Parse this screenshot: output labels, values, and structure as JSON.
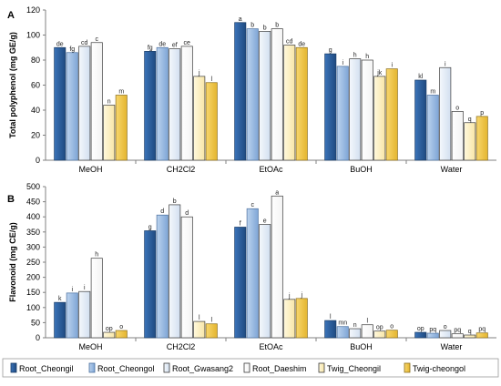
{
  "figure": {
    "legend": [
      {
        "name": "Root_Cheongil",
        "color": "#2e5f9e",
        "gradient": [
          "#3a73b8",
          "#1f4a80"
        ],
        "stroke": "#1a3c66"
      },
      {
        "name": "Root_Cheongol",
        "color": "#9dbde3",
        "gradient": [
          "#bcd3ee",
          "#7fa6d6"
        ],
        "stroke": "#4a6f9e"
      },
      {
        "name": "Root_Gwasang2",
        "color": "#e3ebf6",
        "gradient": [
          "#f4f8fc",
          "#d2dff0"
        ],
        "stroke": "#3c3c3c"
      },
      {
        "name": "Root_Daeshim",
        "color": "#ffffff",
        "gradient": [
          "#ffffff",
          "#f3f3f3"
        ],
        "stroke": "#3c3c3c"
      },
      {
        "name": "Twig_Cheongil",
        "color": "#fdf0c4",
        "gradient": [
          "#fff8dc",
          "#f8e6a8"
        ],
        "stroke": "#3c3c3c"
      },
      {
        "name": "Twig-cheongol",
        "color": "#f2c84b",
        "gradient": [
          "#f8d76e",
          "#e4b52e"
        ],
        "stroke": "#8a6d1a"
      }
    ]
  },
  "chart_data": [
    {
      "type": "bar",
      "panel_label": "A",
      "ylabel": "Total polyphenol (mg GE/g)",
      "ylim": [
        0,
        120
      ],
      "yticks": [
        0,
        20,
        40,
        60,
        80,
        100,
        120
      ],
      "grid": false,
      "categories": [
        "MeOH",
        "CH2Cl2",
        "EtOAc",
        "BuOH",
        "Water"
      ],
      "series": [
        {
          "name": "Root_Cheongil",
          "values": [
            90,
            87,
            110,
            85,
            64
          ],
          "labels": [
            "de",
            "fg",
            "a",
            "g",
            "kl"
          ]
        },
        {
          "name": "Root_Cheongol",
          "values": [
            86,
            90,
            105,
            75,
            52
          ],
          "labels": [
            "fg",
            "de",
            "b",
            "i",
            "m"
          ]
        },
        {
          "name": "Root_Gwasang2",
          "values": [
            91,
            89,
            103,
            81,
            74
          ],
          "labels": [
            "cd",
            "ef",
            "b",
            "h",
            "i"
          ]
        },
        {
          "name": "Root_Daeshim",
          "values": [
            94,
            91,
            105,
            80,
            39
          ],
          "labels": [
            "c",
            "ce",
            "b",
            "h",
            "o"
          ]
        },
        {
          "name": "Twig_Cheongil",
          "values": [
            44,
            67,
            92,
            67,
            30
          ],
          "labels": [
            "n",
            "j",
            "cd",
            "jk",
            "q"
          ]
        },
        {
          "name": "Twig-cheongol",
          "values": [
            52,
            62,
            90,
            73,
            35
          ],
          "labels": [
            "m",
            "l",
            "de",
            "i",
            "p"
          ]
        }
      ]
    },
    {
      "type": "bar",
      "panel_label": "B",
      "ylabel": "Flavonoid (mg CE/g)",
      "ylim": [
        0,
        500
      ],
      "yticks": [
        0,
        50,
        100,
        150,
        200,
        250,
        300,
        350,
        400,
        450,
        500
      ],
      "grid": false,
      "categories": [
        "MeOH",
        "CH2Cl2",
        "EtOAc",
        "BuOH",
        "Water"
      ],
      "series": [
        {
          "name": "Root_Cheongil",
          "values": [
            117,
            354,
            366,
            57,
            18
          ],
          "labels": [
            "k",
            "g",
            "f",
            "l",
            "op"
          ]
        },
        {
          "name": "Root_Cheongol",
          "values": [
            148,
            406,
            427,
            37,
            15
          ],
          "labels": [
            "i",
            "d",
            "c",
            "mn",
            "pq"
          ]
        },
        {
          "name": "Root_Gwasang2",
          "values": [
            153,
            440,
            375,
            30,
            24
          ],
          "labels": [
            "i",
            "b",
            "e",
            "n",
            "o"
          ]
        },
        {
          "name": "Root_Daeshim",
          "values": [
            263,
            400,
            469,
            43,
            13
          ],
          "labels": [
            "h",
            "d",
            "a",
            "l",
            "pq"
          ]
        },
        {
          "name": "Twig_Cheongil",
          "values": [
            18,
            54,
            127,
            22,
            9
          ],
          "labels": [
            "op",
            "l",
            "j",
            "op",
            "q"
          ]
        },
        {
          "name": "Twig-cheongol",
          "values": [
            24,
            46,
            130,
            25,
            16
          ],
          "labels": [
            "o",
            "l",
            "j",
            "o",
            "pq"
          ]
        }
      ]
    }
  ]
}
